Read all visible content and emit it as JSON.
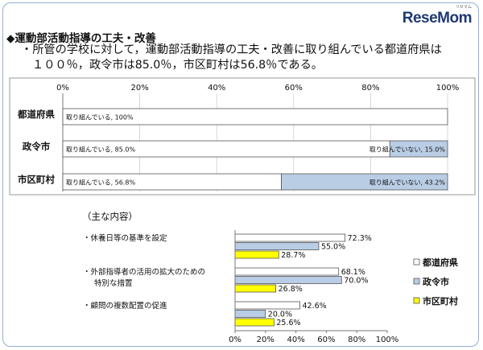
{
  "brand": {
    "logo_text": "ReseMom",
    "logo_sub": "リセマム"
  },
  "header": {
    "title": "◆運動部活動指導の工夫・改善",
    "summary_line1": "・所管の学校に対して，運動部活動指導の工夫・改善に取り組んでいる都道府県は",
    "summary_line2": "１００％，政令市は85.0％，市区町村は56.8％である。"
  },
  "chart_data": [
    {
      "type": "bar",
      "orientation": "horizontal",
      "stacked": true,
      "categories": [
        "都道府県",
        "政令市",
        "市区町村"
      ],
      "series": [
        {
          "name": "取り組んでいる",
          "values": [
            100,
            85.0,
            56.8
          ],
          "labels": [
            "取り組んでいる, 100%",
            "取り組んでいる, 85.0%",
            "取り組んでいる, 56.8%"
          ],
          "color": "#ffffff"
        },
        {
          "name": "取り組んでいない",
          "values": [
            0,
            15.0,
            43.2
          ],
          "labels": [
            "",
            "取り組んでいない, 15.0%",
            "取り組んでいない, 43.2%"
          ],
          "color": "#b9cde5"
        }
      ],
      "xlim": [
        0,
        100
      ],
      "ticks": [
        "0%",
        "20%",
        "40%",
        "60%",
        "80%",
        "100%"
      ],
      "tick_position": "top",
      "grid": true
    },
    {
      "type": "bar",
      "orientation": "horizontal",
      "title": "（主な内容）",
      "categories": [
        "・休養日等の基準を設定",
        "・外部指導者の活用の拡大のための特別な措置",
        "・顧問の複数配置の促進"
      ],
      "category_lines": [
        [
          "・休養日等の基準を設定"
        ],
        [
          "・外部指導者の活用の拡大のための",
          "特別な措置"
        ],
        [
          "・顧問の複数配置の促進"
        ]
      ],
      "series": [
        {
          "name": "都道府県",
          "values": [
            72.3,
            68.1,
            42.6
          ],
          "labels": [
            "72.3%",
            "68.1%",
            "42.6%"
          ],
          "color": "#ffffff"
        },
        {
          "name": "政令市",
          "values": [
            55.0,
            70.0,
            20.0
          ],
          "labels": [
            "55.0%",
            "70.0%",
            "20.0%"
          ],
          "color": "#b9cde5"
        },
        {
          "name": "市区町村",
          "values": [
            28.7,
            26.8,
            25.6
          ],
          "labels": [
            "28.7%",
            "26.8%",
            "25.6%"
          ],
          "color": "#ffff00"
        }
      ],
      "xlim": [
        0,
        100
      ],
      "ticks": [
        "0%",
        "20%",
        "40%",
        "60%",
        "80%",
        "100%"
      ],
      "tick_position": "bottom",
      "grid": false,
      "legend": "right"
    }
  ]
}
